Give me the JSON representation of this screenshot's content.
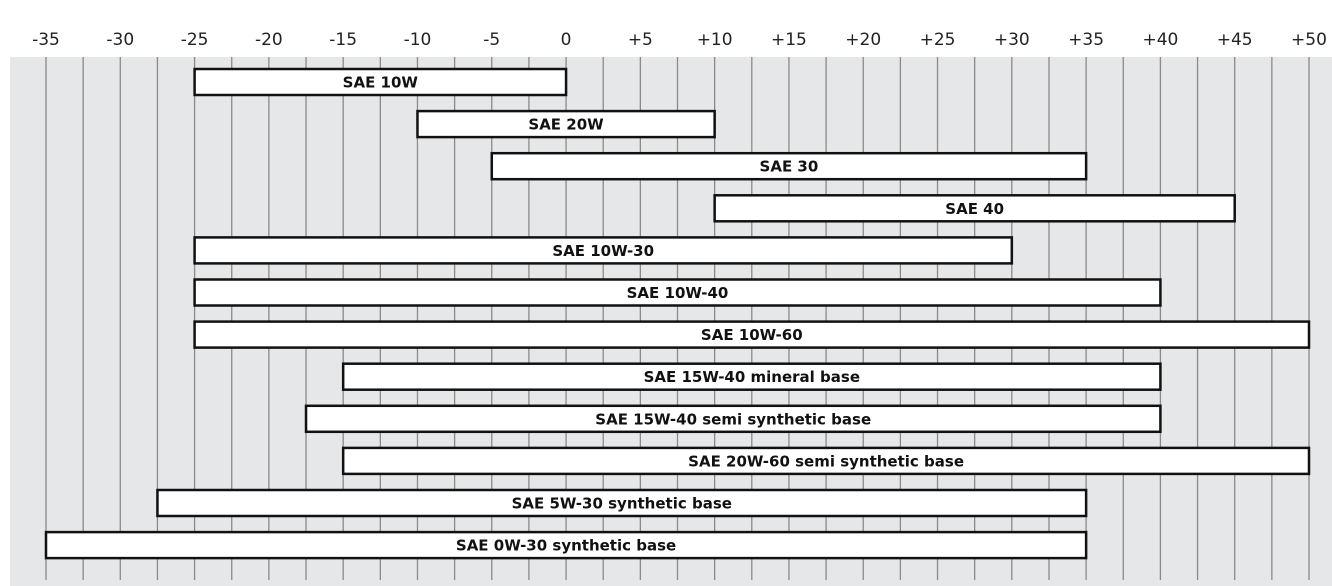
{
  "chart_data": {
    "type": "bar",
    "orientation": "horizontal-range",
    "title": "",
    "xlabel": "",
    "ylabel": "",
    "xlim": [
      -35,
      50
    ],
    "grid": "vertical lines every 2.5 units",
    "tick_labels": [
      "-35",
      "-30",
      "-25",
      "-20",
      "-15",
      "-10",
      "-5",
      "0",
      "+5",
      "+10",
      "+15",
      "+20",
      "+25",
      "+30",
      "+35",
      "+40",
      "+45",
      "+50"
    ],
    "tick_values": [
      -35,
      -30,
      -25,
      -20,
      -15,
      -10,
      -5,
      0,
      5,
      10,
      15,
      20,
      25,
      30,
      35,
      40,
      45,
      50
    ],
    "bars": [
      {
        "label": "SAE 10W",
        "start": -25,
        "end": 0
      },
      {
        "label": "SAE 20W",
        "start": -10,
        "end": 10
      },
      {
        "label": "SAE 30",
        "start": -5,
        "end": 35
      },
      {
        "label": "SAE 40",
        "start": 10,
        "end": 45
      },
      {
        "label": "SAE 10W-30",
        "start": -25,
        "end": 30
      },
      {
        "label": "SAE 10W-40",
        "start": -25,
        "end": 40
      },
      {
        "label": "SAE 10W-60",
        "start": -25,
        "end": 50
      },
      {
        "label": "SAE 15W-40 mineral base",
        "start": -15,
        "end": 40
      },
      {
        "label": "SAE 15W-40 semi synthetic base",
        "start": -17.5,
        "end": 40
      },
      {
        "label": "SAE 20W-60 semi synthetic base",
        "start": -15,
        "end": 50
      },
      {
        "label": "SAE 5W-30 synthetic base",
        "start": -27.5,
        "end": 35
      },
      {
        "label": "SAE 0W-30 synthetic base",
        "start": -35,
        "end": 35
      }
    ],
    "colors": {
      "plot_background": "#e6e7e8",
      "grid_line": "#8a8a8a",
      "bar_fill": "#ffffff",
      "bar_stroke": "#111111"
    }
  }
}
